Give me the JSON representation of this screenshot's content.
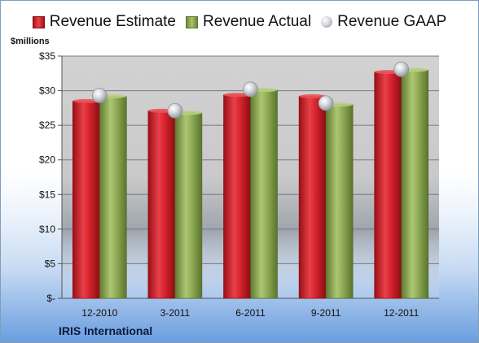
{
  "chart_data": {
    "type": "bar",
    "categories": [
      "12-2010",
      "3-2011",
      "6-2011",
      "9-2011",
      "12-2011"
    ],
    "series": [
      {
        "name": "Revenue Estimate",
        "type": "bar",
        "color": "#c8141c",
        "values": [
          28.5,
          27.1,
          29.4,
          29.2,
          32.7
        ]
      },
      {
        "name": "Revenue Actual",
        "type": "bar",
        "color": "#8aa54d",
        "values": [
          29.2,
          26.8,
          30.1,
          28.0,
          33.0
        ]
      },
      {
        "name": "Revenue GAAP",
        "type": "scatter",
        "color": "#bfc3c9",
        "values": [
          29.3,
          27.1,
          30.2,
          28.2,
          33.1
        ]
      }
    ],
    "ylabel": "$millions",
    "ylim": [
      0,
      35
    ],
    "yticks": [
      0,
      5,
      10,
      15,
      20,
      25,
      30,
      35
    ],
    "ytick_labels": [
      "$-",
      "$5",
      "$10",
      "$15",
      "$20",
      "$25",
      "$30",
      "$35"
    ],
    "grid": true,
    "legend_position": "top"
  },
  "company_name": "IRIS International"
}
